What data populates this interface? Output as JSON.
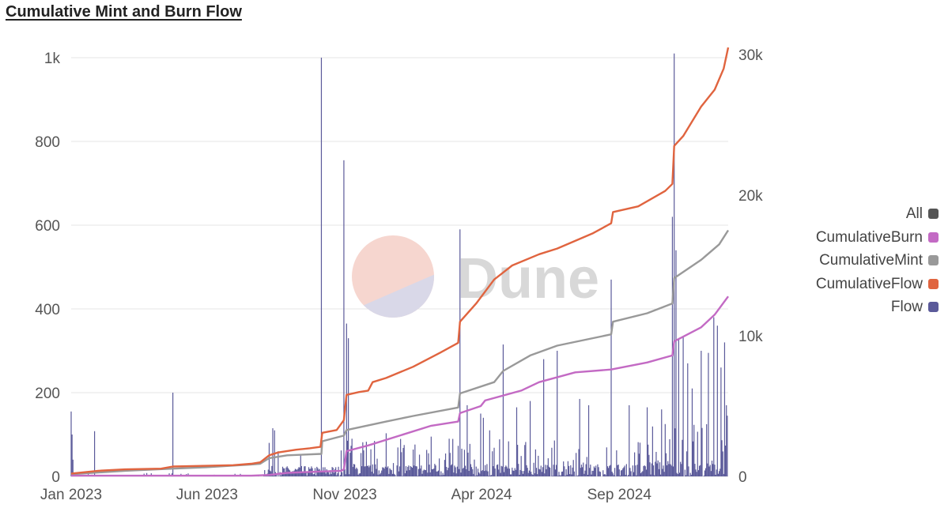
{
  "title": "Cumulative Mint and Burn Flow",
  "watermark": "Dune",
  "colors": {
    "flow": "#5b5a9a",
    "cumulativeFlow": "#e0643f",
    "cumulativeMint": "#999999",
    "cumulativeBurn": "#c36ac4",
    "all": "#555555",
    "grid": "#e6e6e6",
    "watermark_top": "#f6d6cf",
    "watermark_bottom": "#d9d8e8"
  },
  "legend": [
    {
      "label": "All",
      "color": "#555555"
    },
    {
      "label": "CumulativeBurn",
      "color": "#c36ac4"
    },
    {
      "label": "CumulativeMint",
      "color": "#999999"
    },
    {
      "label": "CumulativeFlow",
      "color": "#e0643f"
    },
    {
      "label": "Flow",
      "color": "#5b5a9a"
    }
  ],
  "chart_data": {
    "type": "bar",
    "title": "Cumulative Mint and Burn Flow",
    "xlabel": "",
    "ylabel": "",
    "xlim": [
      "2023-01-01",
      "2024-12-31"
    ],
    "ylim": [
      0,
      1000
    ],
    "y2lim": [
      0,
      30000
    ],
    "x_ticks": [
      "Jan 2023",
      "Jun 2023",
      "Nov 2023",
      "Apr 2024",
      "Sep 2024"
    ],
    "x_tick_positions_days": [
      0,
      151,
      304,
      456,
      609
    ],
    "y_ticks": [
      0,
      200,
      400,
      600,
      800,
      1000
    ],
    "y_tick_labels": [
      "0",
      "200",
      "400",
      "600",
      "800",
      "1k"
    ],
    "y2_ticks": [
      0,
      10000,
      20000,
      30000
    ],
    "y2_tick_labels": [
      "0",
      "10k",
      "20k",
      "30k"
    ],
    "total_days": 730,
    "legend_position": "right",
    "series": [
      {
        "name": "Flow",
        "type": "bar",
        "axis": "left",
        "spikes": [
          {
            "day": 0,
            "value": 155
          },
          {
            "day": 1,
            "value": 100
          },
          {
            "day": 2,
            "value": 40
          },
          {
            "day": 26,
            "value": 108
          },
          {
            "day": 113,
            "value": 200
          },
          {
            "day": 220,
            "value": 80
          },
          {
            "day": 224,
            "value": 115
          },
          {
            "day": 226,
            "value": 110
          },
          {
            "day": 230,
            "value": 60
          },
          {
            "day": 255,
            "value": 50
          },
          {
            "day": 278,
            "value": 1000
          },
          {
            "day": 300,
            "value": 62
          },
          {
            "day": 303,
            "value": 755
          },
          {
            "day": 306,
            "value": 365
          },
          {
            "day": 308,
            "value": 330
          },
          {
            "day": 312,
            "value": 90
          },
          {
            "day": 350,
            "value": 103
          },
          {
            "day": 370,
            "value": 75
          },
          {
            "day": 400,
            "value": 95
          },
          {
            "day": 420,
            "value": 90
          },
          {
            "day": 432,
            "value": 590
          },
          {
            "day": 440,
            "value": 170
          },
          {
            "day": 455,
            "value": 150
          },
          {
            "day": 458,
            "value": 140
          },
          {
            "day": 465,
            "value": 110
          },
          {
            "day": 480,
            "value": 315
          },
          {
            "day": 495,
            "value": 165
          },
          {
            "day": 510,
            "value": 180
          },
          {
            "day": 525,
            "value": 280
          },
          {
            "day": 540,
            "value": 300
          },
          {
            "day": 565,
            "value": 185
          },
          {
            "day": 575,
            "value": 170
          },
          {
            "day": 600,
            "value": 470
          },
          {
            "day": 620,
            "value": 170
          },
          {
            "day": 640,
            "value": 165
          },
          {
            "day": 656,
            "value": 160
          },
          {
            "day": 660,
            "value": 125
          },
          {
            "day": 668,
            "value": 620
          },
          {
            "day": 670,
            "value": 1010
          },
          {
            "day": 672,
            "value": 540
          },
          {
            "day": 675,
            "value": 330
          },
          {
            "day": 680,
            "value": 335
          },
          {
            "day": 685,
            "value": 270
          },
          {
            "day": 690,
            "value": 210
          },
          {
            "day": 700,
            "value": 300
          },
          {
            "day": 708,
            "value": 295
          },
          {
            "day": 714,
            "value": 380
          },
          {
            "day": 718,
            "value": 360
          },
          {
            "day": 722,
            "value": 260
          },
          {
            "day": 726,
            "value": 320
          },
          {
            "day": 728,
            "value": 170
          },
          {
            "day": 729,
            "value": 145
          }
        ]
      },
      {
        "name": "CumulativeFlow",
        "type": "line",
        "axis": "right",
        "points": [
          [
            0,
            200
          ],
          [
            30,
            400
          ],
          [
            60,
            500
          ],
          [
            100,
            550
          ],
          [
            113,
            700
          ],
          [
            150,
            750
          ],
          [
            180,
            800
          ],
          [
            200,
            900
          ],
          [
            210,
            1000
          ],
          [
            220,
            1500
          ],
          [
            230,
            1700
          ],
          [
            250,
            1900
          ],
          [
            265,
            2000
          ],
          [
            277,
            2100
          ],
          [
            279,
            3100
          ],
          [
            295,
            3300
          ],
          [
            303,
            4000
          ],
          [
            306,
            5800
          ],
          [
            320,
            6000
          ],
          [
            330,
            6100
          ],
          [
            335,
            6700
          ],
          [
            350,
            7000
          ],
          [
            380,
            7800
          ],
          [
            410,
            8800
          ],
          [
            430,
            9500
          ],
          [
            432,
            11000
          ],
          [
            450,
            12300
          ],
          [
            470,
            14000
          ],
          [
            490,
            15000
          ],
          [
            520,
            15800
          ],
          [
            540,
            16200
          ],
          [
            580,
            17300
          ],
          [
            600,
            18000
          ],
          [
            602,
            18800
          ],
          [
            630,
            19200
          ],
          [
            660,
            20300
          ],
          [
            668,
            20800
          ],
          [
            670,
            23500
          ],
          [
            680,
            24200
          ],
          [
            700,
            26300
          ],
          [
            715,
            27500
          ],
          [
            725,
            29000
          ],
          [
            730,
            30500
          ]
        ]
      },
      {
        "name": "CumulativeMint",
        "type": "line",
        "axis": "right",
        "points": [
          [
            0,
            150
          ],
          [
            60,
            400
          ],
          [
            113,
            550
          ],
          [
            150,
            650
          ],
          [
            200,
            850
          ],
          [
            210,
            900
          ],
          [
            220,
            1300
          ],
          [
            240,
            1500
          ],
          [
            278,
            1600
          ],
          [
            279,
            2500
          ],
          [
            303,
            2900
          ],
          [
            306,
            3300
          ],
          [
            350,
            3900
          ],
          [
            380,
            4300
          ],
          [
            430,
            4900
          ],
          [
            432,
            5900
          ],
          [
            470,
            6700
          ],
          [
            480,
            7500
          ],
          [
            510,
            8600
          ],
          [
            540,
            9300
          ],
          [
            600,
            10100
          ],
          [
            602,
            11000
          ],
          [
            640,
            11600
          ],
          [
            668,
            12300
          ],
          [
            670,
            14100
          ],
          [
            700,
            15400
          ],
          [
            720,
            16500
          ],
          [
            730,
            17500
          ]
        ]
      },
      {
        "name": "CumulativeBurn",
        "type": "line",
        "axis": "right",
        "points": [
          [
            0,
            50
          ],
          [
            200,
            50
          ],
          [
            220,
            100
          ],
          [
            240,
            250
          ],
          [
            278,
            350
          ],
          [
            300,
            400
          ],
          [
            303,
            500
          ],
          [
            306,
            1800
          ],
          [
            330,
            2200
          ],
          [
            400,
            3600
          ],
          [
            430,
            3900
          ],
          [
            432,
            4500
          ],
          [
            455,
            5000
          ],
          [
            460,
            5400
          ],
          [
            500,
            6100
          ],
          [
            520,
            6700
          ],
          [
            560,
            7400
          ],
          [
            600,
            7600
          ],
          [
            640,
            8100
          ],
          [
            668,
            8600
          ],
          [
            670,
            9600
          ],
          [
            700,
            10600
          ],
          [
            715,
            11500
          ],
          [
            730,
            12800
          ]
        ]
      }
    ]
  }
}
